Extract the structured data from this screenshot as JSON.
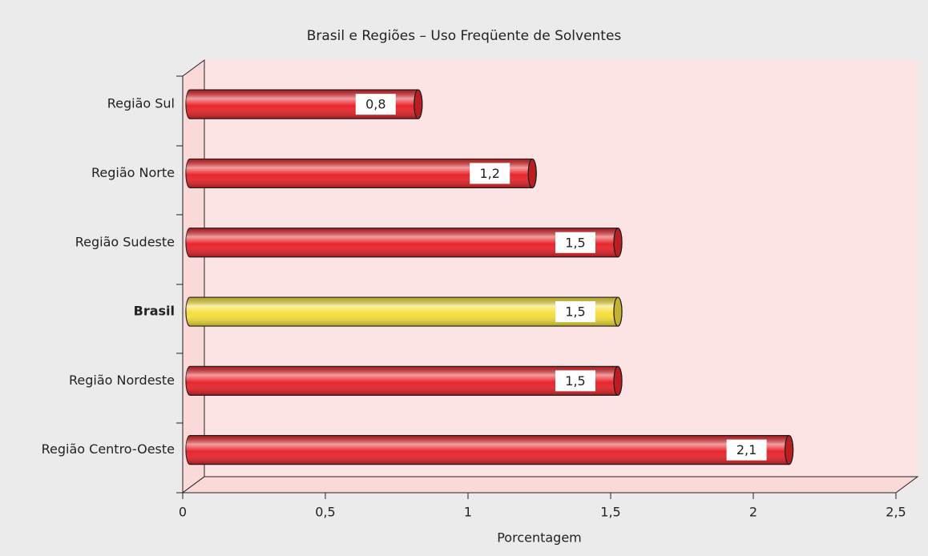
{
  "chart_data": {
    "type": "bar",
    "orientation": "horizontal",
    "title": "Brasil e Regiões – Uso Freqüente de Solventes",
    "xlabel": "Porcentagem",
    "categories": [
      "Região Sul",
      "Região Norte",
      "Região Sudeste",
      "Brasil",
      "Região Nordeste",
      "Região Centro-Oeste"
    ],
    "values": [
      0.8,
      1.2,
      1.5,
      1.5,
      1.5,
      2.1
    ],
    "value_labels": [
      "0,8",
      "1,2",
      "1,5",
      "1,5",
      "1,5",
      "2,1"
    ],
    "colors": [
      "#e8262c",
      "#e8262c",
      "#e8262c",
      "#f5e03c",
      "#e8262c",
      "#e8262c"
    ],
    "xlim": [
      0,
      2.5
    ],
    "xticks": [
      0,
      {
        "value": 0.5,
        "label": "0,5"
      },
      1,
      {
        "value": 1.5,
        "label": "1,5"
      },
      2,
      {
        "value": 2.5,
        "label": "2,5"
      }
    ]
  }
}
